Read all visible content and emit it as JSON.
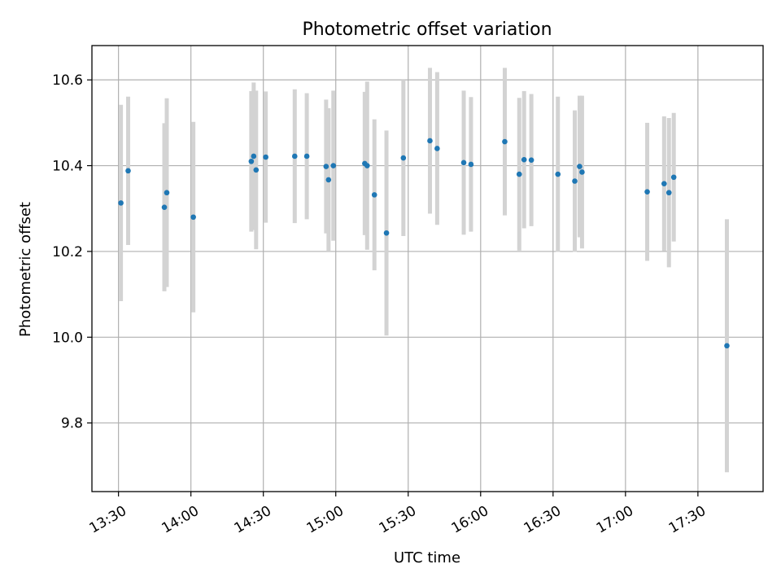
{
  "chart_data": {
    "type": "scatter",
    "title": "Photometric offset variation",
    "xlabel": "UTC time",
    "ylabel": "Photometric offset",
    "x_axis": "time",
    "xlim": [
      "13:19",
      "17:57"
    ],
    "ylim": [
      9.64,
      10.68
    ],
    "x_ticks": [
      "13:30",
      "14:00",
      "14:30",
      "15:00",
      "15:30",
      "16:00",
      "16:30",
      "17:00",
      "17:30"
    ],
    "y_ticks": [
      9.8,
      10.0,
      10.2,
      10.4,
      10.6
    ],
    "y_tick_labels": [
      "9.8",
      "10.0",
      "10.2",
      "10.4",
      "10.6"
    ],
    "grid": true,
    "marker_color": "#1f77b4",
    "errorbar_color": "#d3d3d3",
    "series": [
      {
        "points": [
          {
            "x": "13:31",
            "y": 10.313,
            "yerr": 0.229
          },
          {
            "x": "13:34",
            "y": 10.388,
            "yerr": 0.173
          },
          {
            "x": "13:49",
            "y": 10.303,
            "yerr": 0.196
          },
          {
            "x": "13:50",
            "y": 10.337,
            "yerr": 0.22
          },
          {
            "x": "14:01",
            "y": 10.28,
            "yerr": 0.222
          },
          {
            "x": "14:25",
            "y": 10.41,
            "yerr": 0.164
          },
          {
            "x": "14:26",
            "y": 10.422,
            "yerr": 0.172
          },
          {
            "x": "14:27",
            "y": 10.39,
            "yerr": 0.185
          },
          {
            "x": "14:31",
            "y": 10.42,
            "yerr": 0.153
          },
          {
            "x": "14:43",
            "y": 10.422,
            "yerr": 0.156
          },
          {
            "x": "14:48",
            "y": 10.422,
            "yerr": 0.147
          },
          {
            "x": "14:56",
            "y": 10.398,
            "yerr": 0.156
          },
          {
            "x": "14:57",
            "y": 10.367,
            "yerr": 0.167
          },
          {
            "x": "14:59",
            "y": 10.4,
            "yerr": 0.175
          },
          {
            "x": "15:12",
            "y": 10.405,
            "yerr": 0.167
          },
          {
            "x": "15:13",
            "y": 10.4,
            "yerr": 0.196
          },
          {
            "x": "15:16",
            "y": 10.332,
            "yerr": 0.176
          },
          {
            "x": "15:21",
            "y": 10.243,
            "yerr": 0.239
          },
          {
            "x": "15:28",
            "y": 10.418,
            "yerr": 0.182
          },
          {
            "x": "15:39",
            "y": 10.458,
            "yerr": 0.17
          },
          {
            "x": "15:42",
            "y": 10.44,
            "yerr": 0.178
          },
          {
            "x": "15:53",
            "y": 10.407,
            "yerr": 0.168
          },
          {
            "x": "15:56",
            "y": 10.403,
            "yerr": 0.157
          },
          {
            "x": "16:10",
            "y": 10.456,
            "yerr": 0.172
          },
          {
            "x": "16:16",
            "y": 10.38,
            "yerr": 0.178
          },
          {
            "x": "16:18",
            "y": 10.414,
            "yerr": 0.16
          },
          {
            "x": "16:21",
            "y": 10.413,
            "yerr": 0.154
          },
          {
            "x": "16:32",
            "y": 10.38,
            "yerr": 0.181
          },
          {
            "x": "16:39",
            "y": 10.364,
            "yerr": 0.165
          },
          {
            "x": "16:41",
            "y": 10.398,
            "yerr": 0.165
          },
          {
            "x": "16:42",
            "y": 10.385,
            "yerr": 0.178
          },
          {
            "x": "17:09",
            "y": 10.339,
            "yerr": 0.161
          },
          {
            "x": "17:16",
            "y": 10.358,
            "yerr": 0.157
          },
          {
            "x": "17:18",
            "y": 10.337,
            "yerr": 0.174
          },
          {
            "x": "17:20",
            "y": 10.373,
            "yerr": 0.15
          },
          {
            "x": "17:42",
            "y": 9.98,
            "yerr": 0.295
          }
        ]
      }
    ]
  }
}
